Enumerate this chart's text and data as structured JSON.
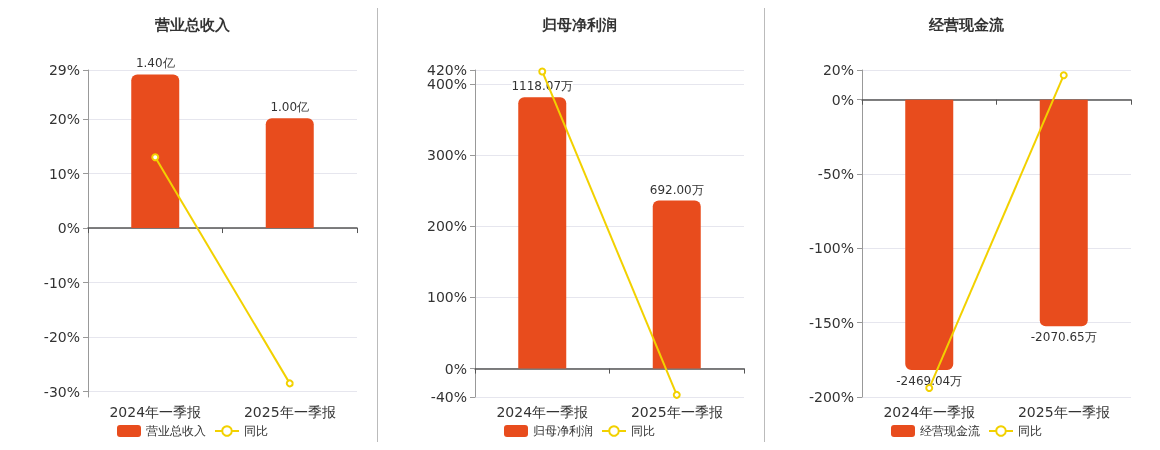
{
  "chart_data": [
    {
      "type": "bar",
      "title": "营业总收入",
      "categories": [
        "2024年一季报",
        "2025年一季报"
      ],
      "series": [
        {
          "name": "营业总收入",
          "axis": "y2",
          "color": "#e84c1d",
          "values": [
            1.4,
            1.0
          ],
          "value_labels": [
            "1.40亿",
            "1.00亿"
          ]
        },
        {
          "name": "同比",
          "type": "line",
          "color": "#f2d100",
          "values": [
            13,
            -28.5
          ],
          "marker": "circle"
        }
      ],
      "ylim": [
        -31,
        29
      ],
      "yticks": [
        {
          "value": -30,
          "label": "-30%"
        },
        {
          "value": -20,
          "label": "-20%"
        },
        {
          "value": -10,
          "label": "-10%"
        },
        {
          "value": 0,
          "label": "0%"
        },
        {
          "value": 10,
          "label": "10%"
        },
        {
          "value": 20,
          "label": "20%"
        },
        {
          "value": 29,
          "label": "29%"
        }
      ],
      "grid": "y",
      "legend": "bottom"
    },
    {
      "type": "bar",
      "title": "归母净利润",
      "categories": [
        "2024年一季报",
        "2025年一季报"
      ],
      "series": [
        {
          "name": "归母净利润",
          "axis": "y2",
          "color": "#e84c1d",
          "values": [
            1118.07,
            692.0
          ],
          "value_labels": [
            "1118.07万",
            "692.00万"
          ]
        },
        {
          "name": "同比",
          "type": "line",
          "color": "#f2d100",
          "values": [
            418,
            -37
          ],
          "marker": "circle"
        }
      ],
      "ylim": [
        -40,
        420
      ],
      "yticks": [
        {
          "value": -40,
          "label": "-40%"
        },
        {
          "value": 0,
          "label": "0%"
        },
        {
          "value": 100,
          "label": "100%"
        },
        {
          "value": 200,
          "label": "200%"
        },
        {
          "value": 300,
          "label": "300%"
        },
        {
          "value": 400,
          "label": "400%"
        },
        {
          "value": 420,
          "label": "420%"
        }
      ],
      "grid": "y",
      "legend": "bottom"
    },
    {
      "type": "bar",
      "title": "经营现金流",
      "categories": [
        "2024年一季报",
        "2025年一季报"
      ],
      "series": [
        {
          "name": "经营现金流",
          "axis": "y2",
          "color": "#e84c1d",
          "values": [
            -2469.04,
            -2070.65
          ],
          "value_labels": [
            "-2469.04万",
            "-2070.65万"
          ]
        },
        {
          "name": "同比",
          "type": "line",
          "color": "#f2d100",
          "values": [
            -194,
            16.5
          ],
          "marker": "circle"
        }
      ],
      "ylim": [
        -200,
        20
      ],
      "yticks": [
        {
          "value": -200,
          "label": "-200%"
        },
        {
          "value": -150,
          "label": "-150%"
        },
        {
          "value": -100,
          "label": "-100%"
        },
        {
          "value": -50,
          "label": "-50%"
        },
        {
          "value": 0,
          "label": "0%"
        },
        {
          "value": 20,
          "label": "20%"
        }
      ],
      "grid": "y",
      "legend": "bottom"
    }
  ]
}
